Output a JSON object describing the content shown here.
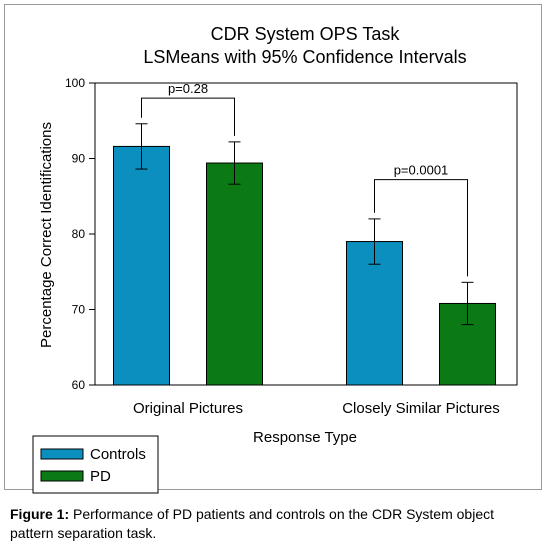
{
  "chart_data": {
    "type": "bar",
    "title_line1": "CDR System OPS Task",
    "title_line2": "LSMeans with 95% Confidence Intervals",
    "xlabel": "Response Type",
    "ylabel": "Percentage Correct Identifications",
    "ylim": [
      60,
      100
    ],
    "yticks": [
      "60",
      "70",
      "80",
      "90",
      "100"
    ],
    "categories": [
      "Original Pictures",
      "Closely Similar Pictures"
    ],
    "series": [
      {
        "name": "Controls",
        "color": "#0b8fbe",
        "values": [
          91.6,
          79.0
        ],
        "ci_low": [
          88.6,
          76.0
        ],
        "ci_high": [
          94.6,
          82.0
        ]
      },
      {
        "name": "PD",
        "color": "#0b7a14",
        "values": [
          89.4,
          70.8
        ],
        "ci_low": [
          86.6,
          68.0
        ],
        "ci_high": [
          92.2,
          73.6
        ]
      }
    ],
    "annotations": [
      {
        "text": "p=0.28",
        "category_index": 0,
        "bracket_y": 98.0
      },
      {
        "text": "p=0.0001",
        "category_index": 1,
        "bracket_y": 87.2
      }
    ],
    "legend_position": "bottom-left",
    "grid": false
  },
  "caption": {
    "label": "Figure 1:",
    "text": " Performance of PD patients and controls on the CDR System object pattern separation task."
  }
}
